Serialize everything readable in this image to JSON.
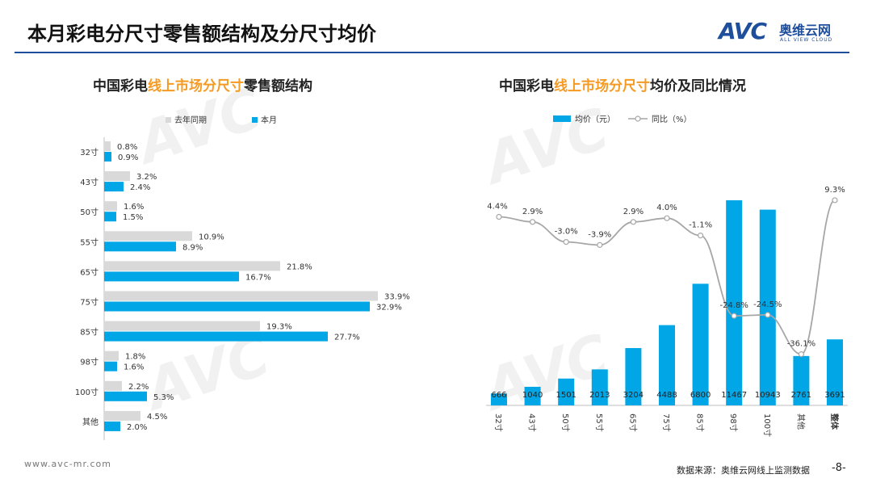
{
  "header": {
    "title": "本月彩电分尺寸零售额结构及分尺寸均价",
    "logo_mark": "AVC",
    "logo_cn": "奥维云网",
    "logo_en": "ALL VIEW CLOUD"
  },
  "footer": {
    "url": "www.avc-mr.com",
    "source": "数据来源：奥维云网线上监测数据",
    "page": "-8-"
  },
  "colors": {
    "current": "#00a6e6",
    "last_year": "#d9d9d9",
    "line": "#a6a6a6",
    "accent": "#f59a23",
    "brand": "#1f4e9c"
  },
  "chart_data": [
    {
      "type": "bar",
      "orientation": "horizontal",
      "title_prefix": "中国彩电",
      "title_highlight": "线上市场分尺寸",
      "title_suffix": "零售额结构",
      "legend": [
        "去年同期",
        "本月"
      ],
      "legend_position": "top",
      "categories": [
        "32寸",
        "43寸",
        "50寸",
        "55寸",
        "65寸",
        "75寸",
        "85寸",
        "98寸",
        "100寸",
        "其他"
      ],
      "series": [
        {
          "name": "去年同期",
          "values": [
            0.8,
            3.2,
            1.6,
            10.9,
            21.8,
            33.9,
            19.3,
            1.8,
            2.2,
            4.5
          ],
          "labels": [
            "0.8%",
            "3.2%",
            "1.6%",
            "10.9%",
            "21.8%",
            "33.9%",
            "19.3%",
            "1.8%",
            "2.2%",
            "4.5%"
          ]
        },
        {
          "name": "本月",
          "values": [
            0.9,
            2.4,
            1.5,
            8.9,
            16.7,
            32.9,
            27.7,
            1.6,
            5.3,
            2.0
          ],
          "labels": [
            "0.9%",
            "2.4%",
            "1.5%",
            "8.9%",
            "16.7%",
            "32.9%",
            "27.7%",
            "1.6%",
            "5.3%",
            "2.0%"
          ]
        }
      ],
      "xlim": [
        0,
        40
      ],
      "grid": false
    },
    {
      "type": "bar+line",
      "title_prefix": "中国彩电",
      "title_highlight": "线上市场分尺寸",
      "title_suffix": "均价及同比情况",
      "legend": [
        "均价（元）",
        "同比（%）"
      ],
      "legend_position": "top",
      "categories": [
        "32寸",
        "43寸",
        "50寸",
        "55寸",
        "65寸",
        "75寸",
        "85寸",
        "98寸",
        "100寸",
        "其他",
        "整体"
      ],
      "bars": {
        "name": "均价（元）",
        "values": [
          666,
          1040,
          1501,
          2013,
          3204,
          4488,
          6800,
          11467,
          10943,
          2761,
          3691
        ],
        "labels": [
          "666",
          "1040",
          "1501",
          "2013",
          "3204",
          "4488",
          "6800",
          "11467",
          "10943",
          "2761",
          "3691"
        ]
      },
      "line": {
        "name": "同比（%）",
        "values": [
          4.4,
          2.9,
          -3.0,
          -3.9,
          2.9,
          4.0,
          -1.1,
          -24.8,
          -24.5,
          -36.1,
          9.3
        ],
        "labels": [
          "4.4%",
          "2.9%",
          "-3.0%",
          "-3.9%",
          "2.9%",
          "4.0%",
          "-1.1%",
          "-24.8%",
          "-24.5%",
          "-36.1%",
          "9.3%"
        ]
      },
      "bar_ylim": [
        0,
        12000
      ],
      "line_ylim": [
        -40,
        15
      ],
      "grid": false
    }
  ]
}
